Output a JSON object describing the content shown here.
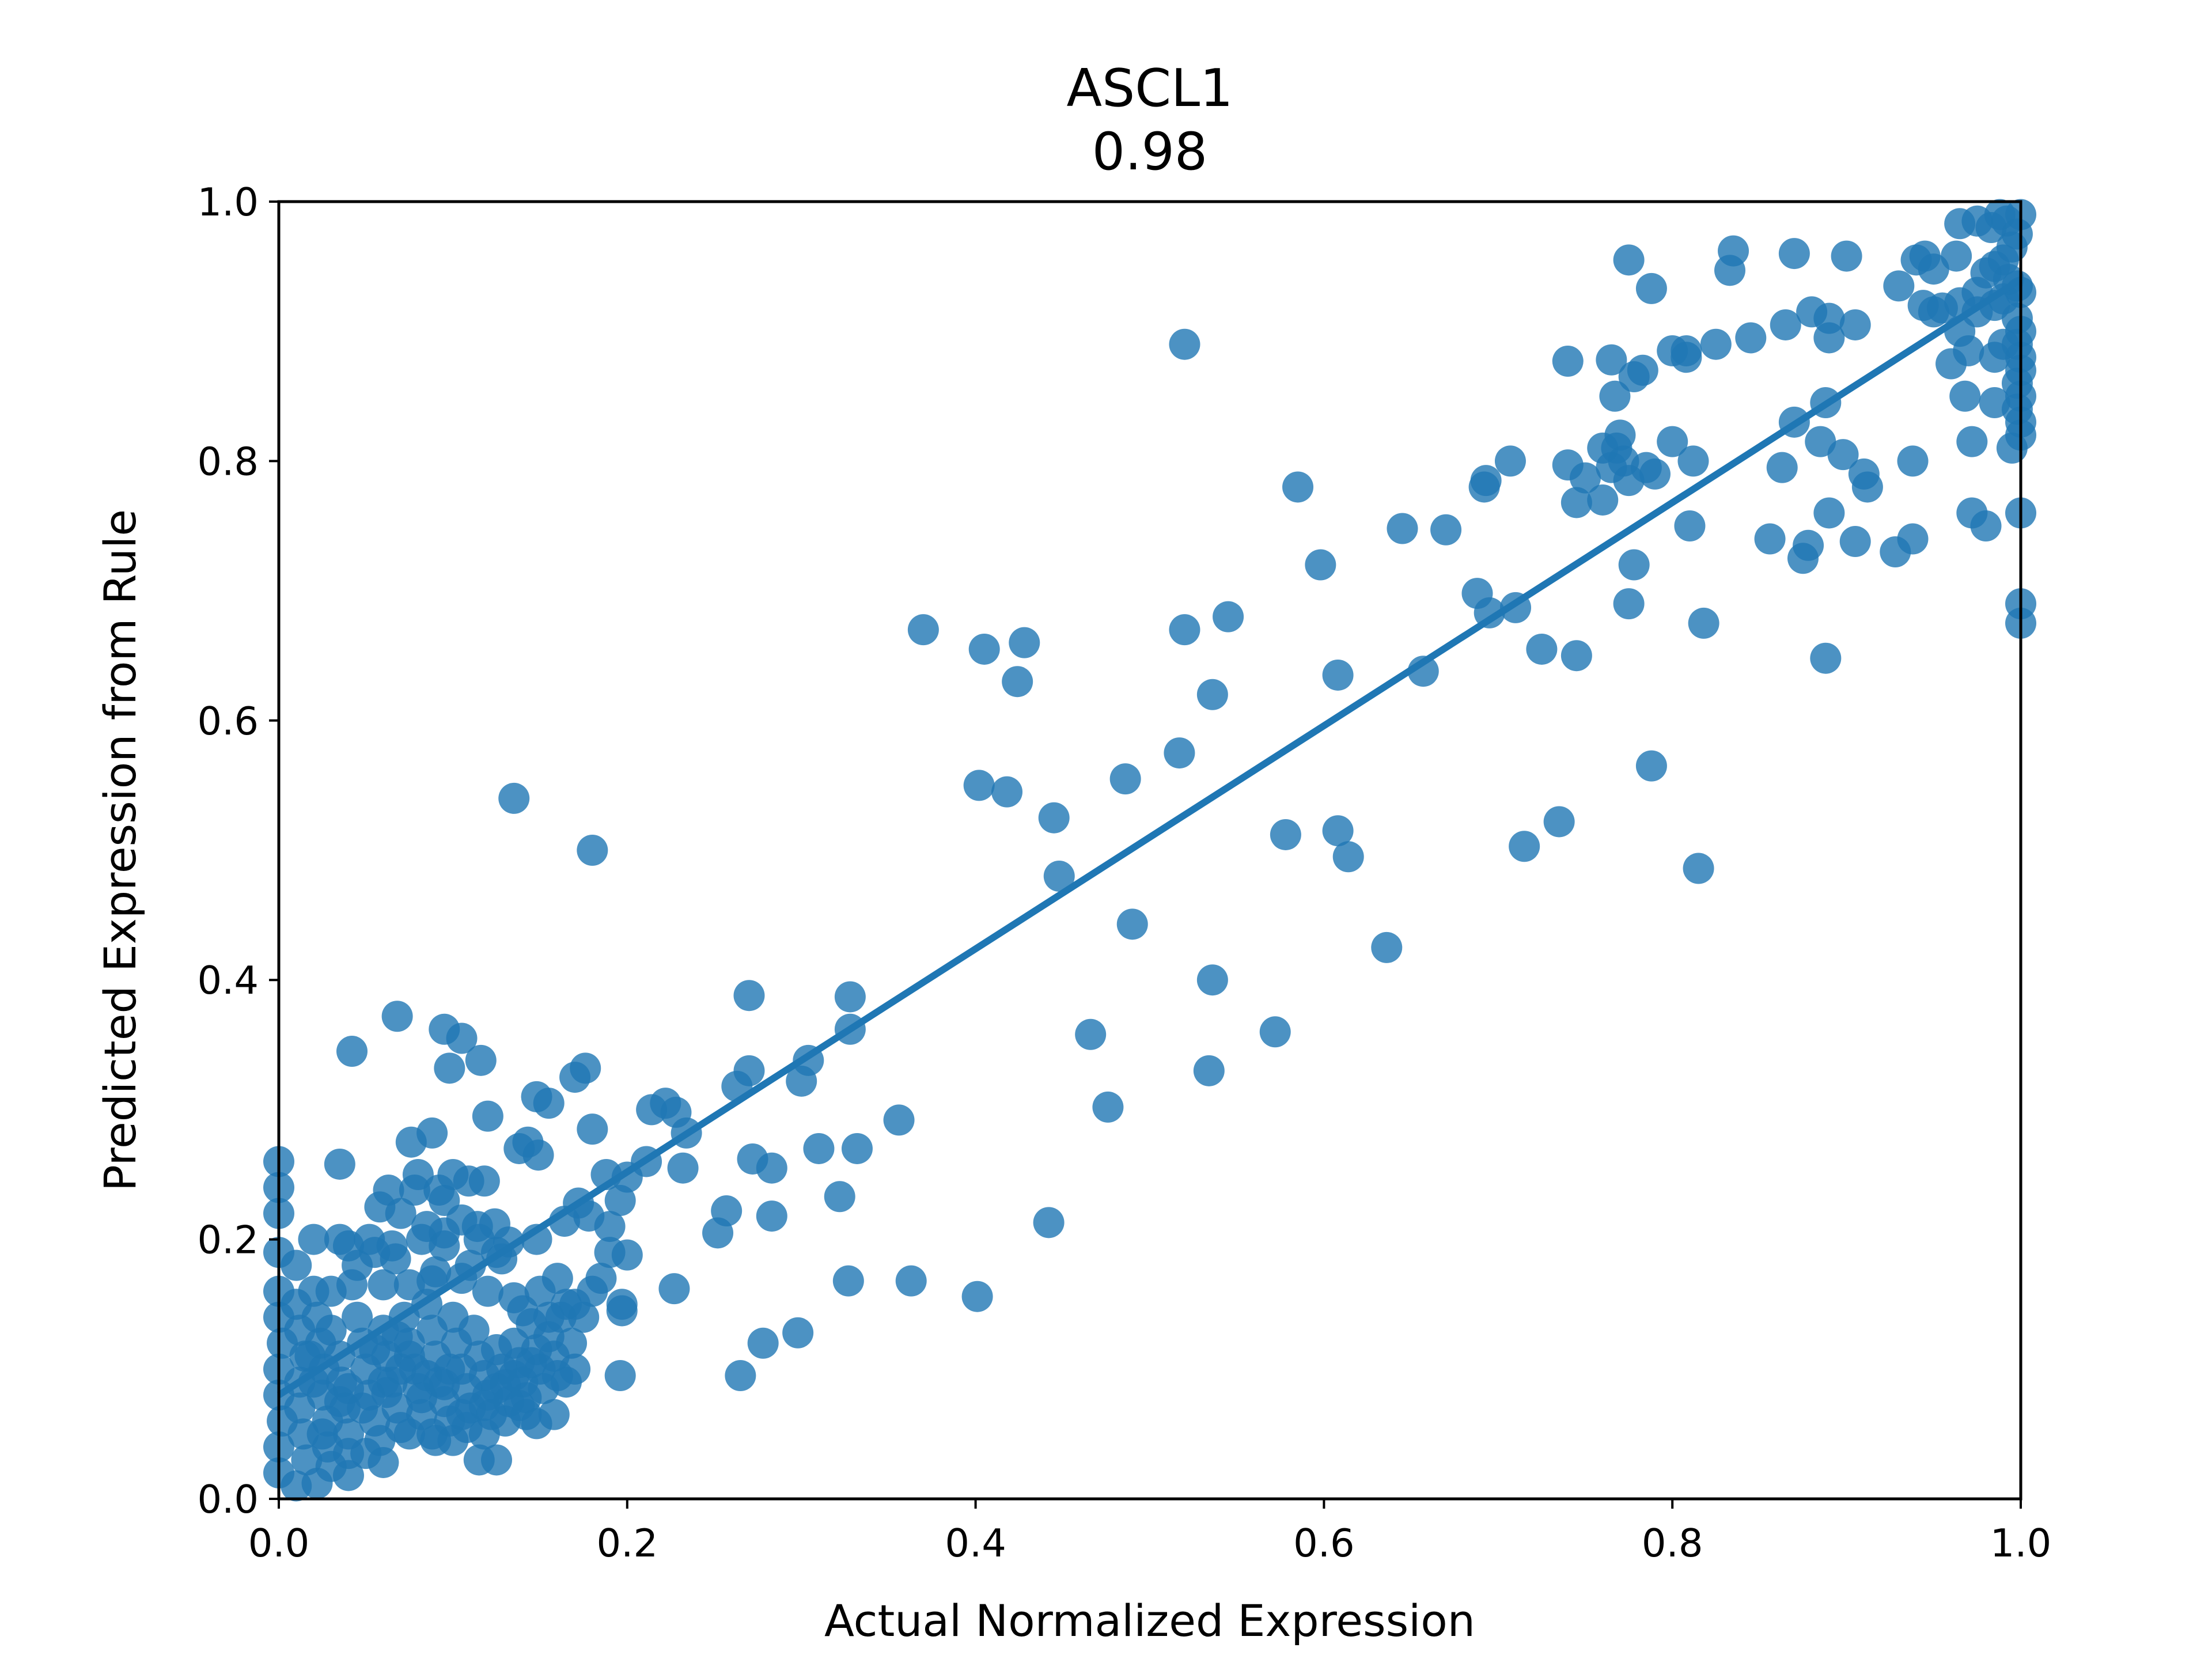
{
  "chart_data": {
    "type": "scatter",
    "title": "ASCL1",
    "subtitle": "0.98",
    "xlabel": "Actual Normalized Expression",
    "ylabel": "Predicted Expression from Rule",
    "xlim": [
      0.0,
      1.0
    ],
    "ylim": [
      0.0,
      1.0
    ],
    "xticks": [
      "0.0",
      "0.2",
      "0.4",
      "0.6",
      "0.8",
      "1.0"
    ],
    "yticks": [
      "0.0",
      "0.2",
      "0.4",
      "0.6",
      "0.8",
      "1.0"
    ],
    "grid": false,
    "legend": "none",
    "colors": {
      "points": "#1f77b4",
      "fit_line": "#1f77b4",
      "axes": "#000000"
    },
    "fit_line": {
      "x": [
        0.0,
        1.0
      ],
      "y": [
        0.08,
        0.94
      ]
    },
    "points": [
      [
        0.52,
        0.89
      ],
      [
        0.37,
        0.67
      ],
      [
        0.405,
        0.655
      ],
      [
        0.428,
        0.66
      ],
      [
        0.424,
        0.63
      ],
      [
        0.135,
        0.54
      ],
      [
        0.18,
        0.5
      ],
      [
        0.585,
        0.78
      ],
      [
        0.598,
        0.72
      ],
      [
        0.52,
        0.67
      ],
      [
        0.545,
        0.68
      ],
      [
        0.608,
        0.635
      ],
      [
        0.536,
        0.62
      ],
      [
        0.402,
        0.55
      ],
      [
        0.418,
        0.545
      ],
      [
        0.445,
        0.525
      ],
      [
        0.448,
        0.48
      ],
      [
        0.486,
        0.555
      ],
      [
        0.517,
        0.575
      ],
      [
        0.578,
        0.512
      ],
      [
        0.608,
        0.515
      ],
      [
        0.614,
        0.495
      ],
      [
        0.49,
        0.443
      ],
      [
        0.536,
        0.4
      ],
      [
        0.636,
        0.425
      ],
      [
        0.572,
        0.36
      ],
      [
        0.466,
        0.358
      ],
      [
        0.534,
        0.33
      ],
      [
        0.476,
        0.302
      ],
      [
        0.442,
        0.213
      ],
      [
        0.401,
        0.156
      ],
      [
        0.363,
        0.168
      ],
      [
        0.327,
        0.168
      ],
      [
        0.356,
        0.292
      ],
      [
        0.332,
        0.27
      ],
      [
        0.31,
        0.27
      ],
      [
        0.322,
        0.233
      ],
      [
        0.3,
        0.322
      ],
      [
        0.304,
        0.338
      ],
      [
        0.328,
        0.387
      ],
      [
        0.328,
        0.362
      ],
      [
        0.27,
        0.388
      ],
      [
        0.27,
        0.33
      ],
      [
        0.263,
        0.318
      ],
      [
        0.272,
        0.262
      ],
      [
        0.283,
        0.255
      ],
      [
        0.283,
        0.218
      ],
      [
        0.257,
        0.222
      ],
      [
        0.252,
        0.205
      ],
      [
        0.278,
        0.12
      ],
      [
        0.298,
        0.128
      ],
      [
        0.265,
        0.095
      ],
      [
        0.227,
        0.162
      ],
      [
        0.234,
        0.282
      ],
      [
        0.228,
        0.298
      ],
      [
        0.222,
        0.305
      ],
      [
        0.214,
        0.3
      ],
      [
        0.211,
        0.26
      ],
      [
        0.232,
        0.255
      ],
      [
        0.2,
        0.248
      ],
      [
        0.196,
        0.23
      ],
      [
        0.2,
        0.188
      ],
      [
        0.197,
        0.15
      ],
      [
        0.197,
        0.145
      ],
      [
        0.196,
        0.095
      ],
      [
        0.188,
        0.25
      ],
      [
        0.19,
        0.21
      ],
      [
        0.176,
        0.332
      ],
      [
        0.17,
        0.325
      ],
      [
        0.18,
        0.285
      ],
      [
        0.172,
        0.228
      ],
      [
        0.178,
        0.218
      ],
      [
        0.164,
        0.214
      ],
      [
        0.155,
        0.305
      ],
      [
        0.148,
        0.31
      ],
      [
        0.143,
        0.275
      ],
      [
        0.149,
        0.265
      ],
      [
        0.138,
        0.27
      ],
      [
        0.148,
        0.2
      ],
      [
        0.12,
        0.295
      ],
      [
        0.118,
        0.245
      ],
      [
        0.116,
        0.338
      ],
      [
        0.105,
        0.355
      ],
      [
        0.098,
        0.332
      ],
      [
        0.095,
        0.362
      ],
      [
        0.068,
        0.372
      ],
      [
        0.042,
        0.345
      ],
      [
        0.035,
        0.258
      ],
      [
        0.088,
        0.282
      ],
      [
        0.076,
        0.275
      ],
      [
        0.092,
        0.238
      ],
      [
        0.078,
        0.238
      ],
      [
        0.063,
        0.238
      ],
      [
        0.058,
        0.225
      ],
      [
        0.1,
        0.25
      ],
      [
        0.109,
        0.245
      ],
      [
        0.124,
        0.212
      ],
      [
        0.114,
        0.21
      ],
      [
        0.105,
        0.215
      ],
      [
        0.082,
        0.2
      ],
      [
        0.07,
        0.22
      ],
      [
        0.055,
        0.19
      ],
      [
        0.045,
        0.18
      ],
      [
        0.035,
        0.2
      ],
      [
        0.02,
        0.2
      ],
      [
        0.01,
        0.18
      ],
      [
        0.03,
        0.16
      ],
      [
        0.042,
        0.165
      ],
      [
        0.06,
        0.165
      ],
      [
        0.088,
        0.168
      ],
      [
        0.105,
        0.17
      ],
      [
        0.12,
        0.16
      ],
      [
        0.135,
        0.155
      ],
      [
        0.15,
        0.16
      ],
      [
        0.16,
        0.17
      ],
      [
        0.17,
        0.15
      ],
      [
        0.18,
        0.16
      ],
      [
        0.168,
        0.12
      ],
      [
        0.17,
        0.1
      ],
      [
        0.165,
        0.09
      ],
      [
        0.158,
        0.065
      ],
      [
        0.148,
        0.058
      ],
      [
        0.138,
        0.072
      ],
      [
        0.125,
        0.03
      ],
      [
        0.115,
        0.03
      ],
      [
        0.1,
        0.045
      ],
      [
        0.088,
        0.05
      ],
      [
        0.06,
        0.028
      ],
      [
        0.04,
        0.018
      ],
      [
        0.022,
        0.012
      ],
      [
        0.01,
        0.01
      ],
      [
        0.0,
        0.26
      ],
      [
        0.0,
        0.24
      ],
      [
        0.0,
        0.22
      ],
      [
        0.0,
        0.19
      ],
      [
        0.0,
        0.16
      ],
      [
        0.0,
        0.14
      ],
      [
        0.002,
        0.12
      ],
      [
        0.0,
        0.1
      ],
      [
        0.0,
        0.08
      ],
      [
        0.002,
        0.06
      ],
      [
        0.0,
        0.04
      ],
      [
        0.0,
        0.02
      ],
      [
        0.01,
        0.15
      ],
      [
        0.012,
        0.13
      ],
      [
        0.015,
        0.11
      ],
      [
        0.012,
        0.09
      ],
      [
        0.012,
        0.07
      ],
      [
        0.014,
        0.05
      ],
      [
        0.016,
        0.03
      ],
      [
        0.02,
        0.16
      ],
      [
        0.022,
        0.14
      ],
      [
        0.024,
        0.12
      ],
      [
        0.026,
        0.1
      ],
      [
        0.025,
        0.08
      ],
      [
        0.028,
        0.06
      ],
      [
        0.028,
        0.04
      ],
      [
        0.03,
        0.13
      ],
      [
        0.035,
        0.11
      ],
      [
        0.036,
        0.09
      ],
      [
        0.038,
        0.07
      ],
      [
        0.04,
        0.05
      ],
      [
        0.04,
        0.035
      ],
      [
        0.045,
        0.14
      ],
      [
        0.048,
        0.12
      ],
      [
        0.05,
        0.1
      ],
      [
        0.052,
        0.08
      ],
      [
        0.055,
        0.06
      ],
      [
        0.058,
        0.045
      ],
      [
        0.06,
        0.13
      ],
      [
        0.062,
        0.11
      ],
      [
        0.065,
        0.09
      ],
      [
        0.068,
        0.07
      ],
      [
        0.07,
        0.055
      ],
      [
        0.072,
        0.14
      ],
      [
        0.075,
        0.12
      ],
      [
        0.078,
        0.1
      ],
      [
        0.08,
        0.085
      ],
      [
        0.082,
        0.065
      ],
      [
        0.085,
        0.15
      ],
      [
        0.088,
        0.13
      ],
      [
        0.09,
        0.11
      ],
      [
        0.092,
        0.09
      ],
      [
        0.095,
        0.075
      ],
      [
        0.098,
        0.06
      ],
      [
        0.1,
        0.14
      ],
      [
        0.102,
        0.12
      ],
      [
        0.105,
        0.1
      ],
      [
        0.108,
        0.085
      ],
      [
        0.11,
        0.07
      ],
      [
        0.112,
        0.13
      ],
      [
        0.115,
        0.11
      ],
      [
        0.118,
        0.095
      ],
      [
        0.12,
        0.08
      ],
      [
        0.122,
        0.065
      ],
      [
        0.125,
        0.115
      ],
      [
        0.128,
        0.1
      ],
      [
        0.13,
        0.088
      ],
      [
        0.132,
        0.075
      ],
      [
        0.135,
        0.12
      ],
      [
        0.138,
        0.105
      ],
      [
        0.14,
        0.09
      ],
      [
        0.142,
        0.078
      ],
      [
        0.145,
        0.135
      ],
      [
        0.148,
        0.115
      ],
      [
        0.15,
        0.1
      ],
      [
        0.152,
        0.085
      ],
      [
        0.155,
        0.125
      ],
      [
        0.158,
        0.11
      ],
      [
        0.16,
        0.095
      ],
      [
        0.162,
        0.14
      ],
      [
        0.11,
        0.18
      ],
      [
        0.095,
        0.195
      ],
      [
        0.128,
        0.185
      ],
      [
        0.132,
        0.198
      ],
      [
        0.14,
        0.145
      ],
      [
        0.065,
        0.195
      ],
      [
        0.052,
        0.2
      ],
      [
        0.04,
        0.195
      ],
      [
        0.075,
        0.165
      ],
      [
        0.09,
        0.175
      ],
      [
        0.067,
        0.185
      ],
      [
        0.085,
        0.21
      ],
      [
        0.095,
        0.205
      ],
      [
        0.115,
        0.2
      ],
      [
        0.125,
        0.19
      ],
      [
        0.095,
        0.23
      ],
      [
        0.08,
        0.25
      ],
      [
        0.075,
        0.11
      ],
      [
        0.085,
        0.095
      ],
      [
        0.062,
        0.082
      ],
      [
        0.048,
        0.07
      ],
      [
        0.035,
        0.075
      ],
      [
        0.02,
        0.09
      ],
      [
        0.018,
        0.11
      ],
      [
        0.055,
        0.115
      ],
      [
        0.068,
        0.125
      ],
      [
        0.098,
        0.1
      ],
      [
        0.108,
        0.055
      ],
      [
        0.118,
        0.05
      ],
      [
        0.13,
        0.06
      ],
      [
        0.142,
        0.065
      ],
      [
        0.09,
        0.045
      ],
      [
        0.075,
        0.05
      ],
      [
        0.05,
        0.035
      ],
      [
        0.03,
        0.025
      ],
      [
        0.025,
        0.05
      ],
      [
        0.04,
        0.085
      ],
      [
        0.06,
        0.09
      ],
      [
        0.07,
        0.1
      ],
      [
        0.082,
        0.078
      ],
      [
        0.095,
        0.088
      ],
      [
        0.105,
        0.065
      ],
      [
        0.118,
        0.072
      ],
      [
        0.125,
        0.085
      ],
      [
        0.135,
        0.095
      ],
      [
        0.145,
        0.105
      ],
      [
        0.155,
        0.14
      ],
      [
        0.165,
        0.15
      ],
      [
        0.175,
        0.14
      ],
      [
        0.185,
        0.17
      ],
      [
        0.19,
        0.19
      ],
      [
        0.775,
        0.955
      ],
      [
        0.788,
        0.933
      ],
      [
        0.835,
        0.962
      ],
      [
        0.833,
        0.947
      ],
      [
        0.87,
        0.96
      ],
      [
        0.9,
        0.958
      ],
      [
        0.93,
        0.935
      ],
      [
        0.94,
        0.955
      ],
      [
        0.945,
        0.958
      ],
      [
        0.95,
        0.948
      ],
      [
        0.963,
        0.958
      ],
      [
        0.965,
        0.983
      ],
      [
        0.975,
        0.985
      ],
      [
        0.983,
        0.98
      ],
      [
        0.988,
        0.99
      ],
      [
        0.992,
        0.985
      ],
      [
        0.998,
        0.975
      ],
      [
        1.0,
        0.99
      ],
      [
        0.995,
        0.965
      ],
      [
        0.99,
        0.955
      ],
      [
        0.985,
        0.95
      ],
      [
        0.98,
        0.945
      ],
      [
        0.993,
        0.94
      ],
      [
        0.998,
        0.935
      ],
      [
        1.0,
        0.93
      ],
      [
        0.99,
        0.925
      ],
      [
        0.985,
        0.92
      ],
      [
        0.975,
        0.915
      ],
      [
        0.965,
        0.922
      ],
      [
        0.955,
        0.918
      ],
      [
        0.95,
        0.915
      ],
      [
        0.944,
        0.92
      ],
      [
        0.998,
        0.91
      ],
      [
        1.0,
        0.9
      ],
      [
        0.998,
        0.89
      ],
      [
        1.0,
        0.88
      ],
      [
        1.0,
        0.87
      ],
      [
        0.998,
        0.86
      ],
      [
        1.0,
        0.85
      ],
      [
        0.998,
        0.84
      ],
      [
        1.0,
        0.83
      ],
      [
        1.0,
        0.82
      ],
      [
        0.995,
        0.81
      ],
      [
        0.99,
        0.89
      ],
      [
        0.985,
        0.88
      ],
      [
        0.975,
        0.93
      ],
      [
        0.965,
        0.9
      ],
      [
        0.96,
        0.875
      ],
      [
        0.97,
        0.885
      ],
      [
        0.968,
        0.85
      ],
      [
        0.985,
        0.845
      ],
      [
        0.972,
        0.815
      ],
      [
        0.88,
        0.915
      ],
      [
        0.865,
        0.905
      ],
      [
        0.89,
        0.91
      ],
      [
        0.905,
        0.905
      ],
      [
        0.89,
        0.895
      ],
      [
        0.845,
        0.895
      ],
      [
        0.825,
        0.89
      ],
      [
        0.808,
        0.885
      ],
      [
        0.8,
        0.885
      ],
      [
        0.808,
        0.88
      ],
      [
        0.765,
        0.878
      ],
      [
        0.783,
        0.87
      ],
      [
        0.778,
        0.865
      ],
      [
        0.767,
        0.85
      ],
      [
        0.87,
        0.83
      ],
      [
        0.888,
        0.845
      ],
      [
        0.885,
        0.815
      ],
      [
        0.898,
        0.805
      ],
      [
        0.91,
        0.79
      ],
      [
        0.912,
        0.78
      ],
      [
        0.938,
        0.8
      ],
      [
        0.938,
        0.74
      ],
      [
        0.928,
        0.73
      ],
      [
        0.905,
        0.738
      ],
      [
        0.89,
        0.76
      ],
      [
        0.878,
        0.735
      ],
      [
        0.875,
        0.725
      ],
      [
        0.856,
        0.74
      ],
      [
        0.888,
        0.648
      ],
      [
        0.972,
        0.76
      ],
      [
        0.98,
        0.75
      ],
      [
        1.0,
        0.76
      ],
      [
        1.0,
        0.69
      ],
      [
        1.0,
        0.675
      ],
      [
        0.863,
        0.795
      ],
      [
        0.8,
        0.815
      ],
      [
        0.812,
        0.8
      ],
      [
        0.77,
        0.82
      ],
      [
        0.768,
        0.81
      ],
      [
        0.772,
        0.8
      ],
      [
        0.76,
        0.81
      ],
      [
        0.765,
        0.795
      ],
      [
        0.79,
        0.79
      ],
      [
        0.785,
        0.795
      ],
      [
        0.775,
        0.785
      ],
      [
        0.74,
        0.797
      ],
      [
        0.75,
        0.787
      ],
      [
        0.76,
        0.77
      ],
      [
        0.745,
        0.768
      ],
      [
        0.81,
        0.75
      ],
      [
        0.778,
        0.72
      ],
      [
        0.775,
        0.69
      ],
      [
        0.818,
        0.675
      ],
      [
        0.745,
        0.65
      ],
      [
        0.74,
        0.877
      ],
      [
        0.707,
        0.8
      ],
      [
        0.693,
        0.785
      ],
      [
        0.692,
        0.78
      ],
      [
        0.688,
        0.698
      ],
      [
        0.695,
        0.683
      ],
      [
        0.71,
        0.687
      ],
      [
        0.725,
        0.655
      ],
      [
        0.67,
        0.747
      ],
      [
        0.645,
        0.748
      ],
      [
        0.657,
        0.638
      ],
      [
        0.715,
        0.503
      ],
      [
        0.735,
        0.522
      ],
      [
        0.788,
        0.565
      ],
      [
        0.815,
        0.486
      ]
    ]
  }
}
